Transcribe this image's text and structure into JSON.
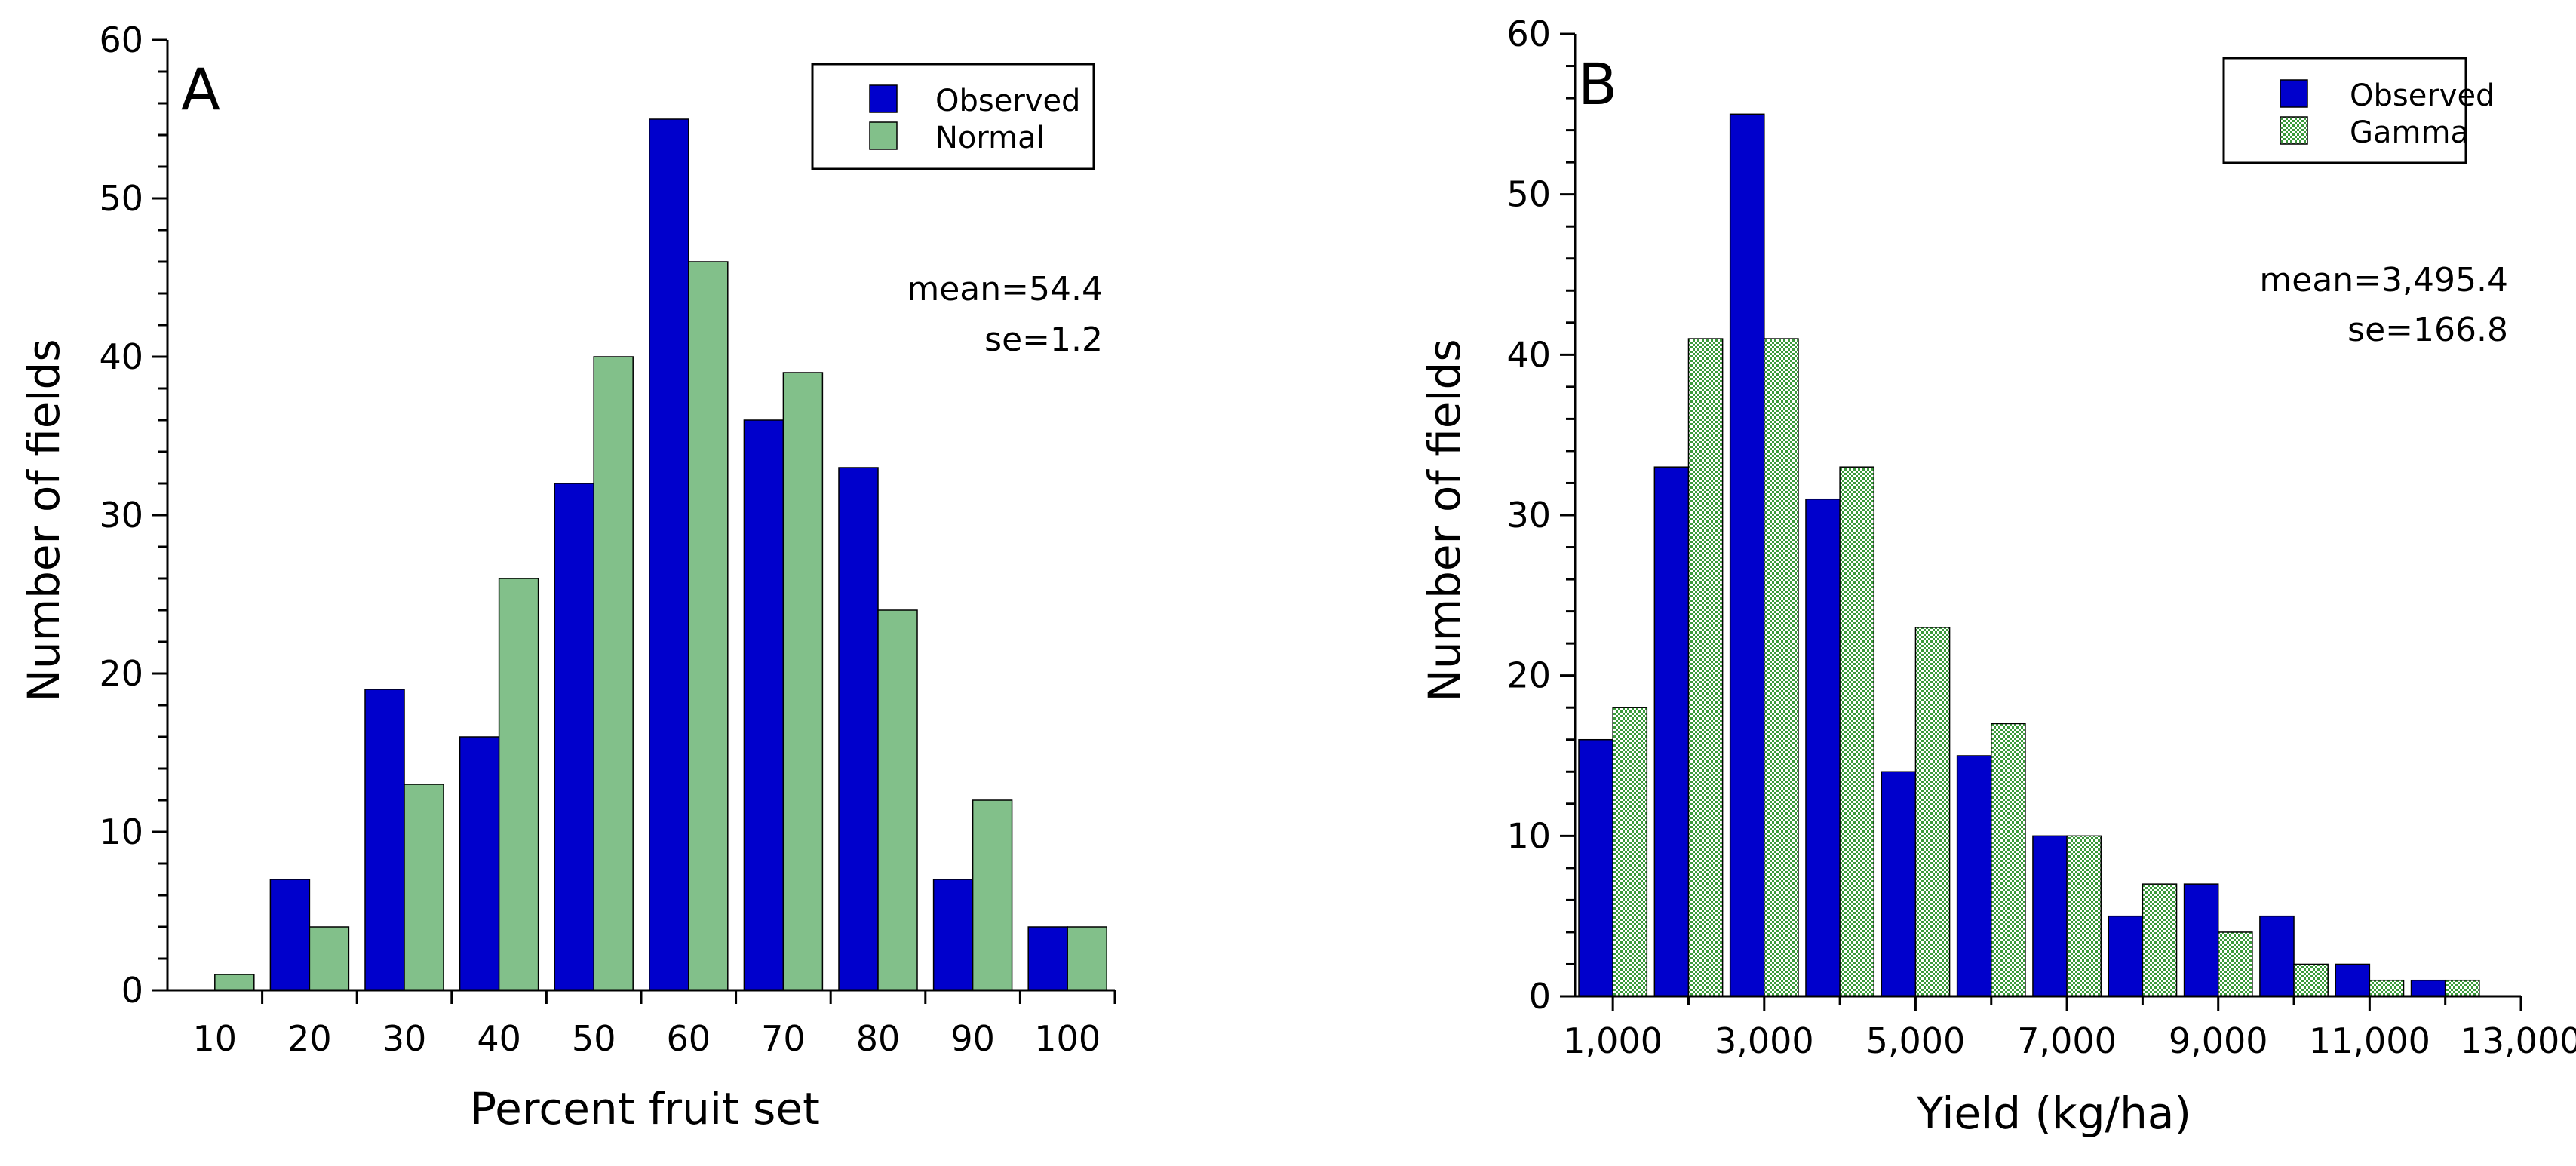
{
  "chart_data": [
    {
      "panel": "A",
      "type": "bar",
      "xlabel": "Percent fruit set",
      "ylabel": "Number of fields",
      "ylim": [
        0,
        60
      ],
      "yticks": [
        "0",
        "10",
        "20",
        "30",
        "40",
        "50",
        "60"
      ],
      "categories": [
        "10",
        "20",
        "30",
        "40",
        "50",
        "60",
        "70",
        "80",
        "90",
        "100"
      ],
      "series": [
        {
          "name": "Observed",
          "color": "#0000cc",
          "pattern": "solid",
          "values": [
            0,
            7,
            19,
            16,
            32,
            55,
            36,
            33,
            7,
            4
          ]
        },
        {
          "name": "Normal",
          "color": "#82c08a",
          "pattern": "solid",
          "values": [
            1,
            4,
            13,
            26,
            40,
            46,
            39,
            24,
            12,
            4
          ]
        }
      ],
      "legend_position": "top-right",
      "stats": [
        "mean=54.4",
        "se=1.2"
      ]
    },
    {
      "panel": "B",
      "type": "bar",
      "xlabel": "Yield (kg/ha)",
      "ylabel": "Number of fields",
      "ylim": [
        0,
        60
      ],
      "yticks": [
        "0",
        "10",
        "20",
        "30",
        "40",
        "50",
        "60"
      ],
      "xlim": [
        500,
        13000
      ],
      "xtick_values": [
        1000,
        3000,
        5000,
        7000,
        9000,
        11000,
        13000
      ],
      "xtick_labels": [
        "1,000",
        "3,000",
        "5,000",
        "7,000",
        "9,000",
        "11,000",
        "13,000"
      ],
      "bin_starts": [
        500,
        1500,
        2500,
        3500,
        4500,
        5500,
        6500,
        7500,
        8500,
        9500,
        10500,
        11500
      ],
      "bin_width": 1000,
      "series": [
        {
          "name": "Observed",
          "color": "#0000cc",
          "pattern": "solid",
          "values": [
            16,
            33,
            55,
            31,
            14,
            15,
            10,
            5,
            7,
            5,
            2,
            1
          ]
        },
        {
          "name": "Gamma",
          "color": "#5cb85c",
          "pattern": "checker",
          "values": [
            18,
            41,
            41,
            33,
            23,
            17,
            10,
            7,
            4,
            2,
            1,
            1
          ]
        }
      ],
      "legend_position": "top-right",
      "stats": [
        "mean=3,495.4",
        "se=166.8"
      ]
    }
  ]
}
